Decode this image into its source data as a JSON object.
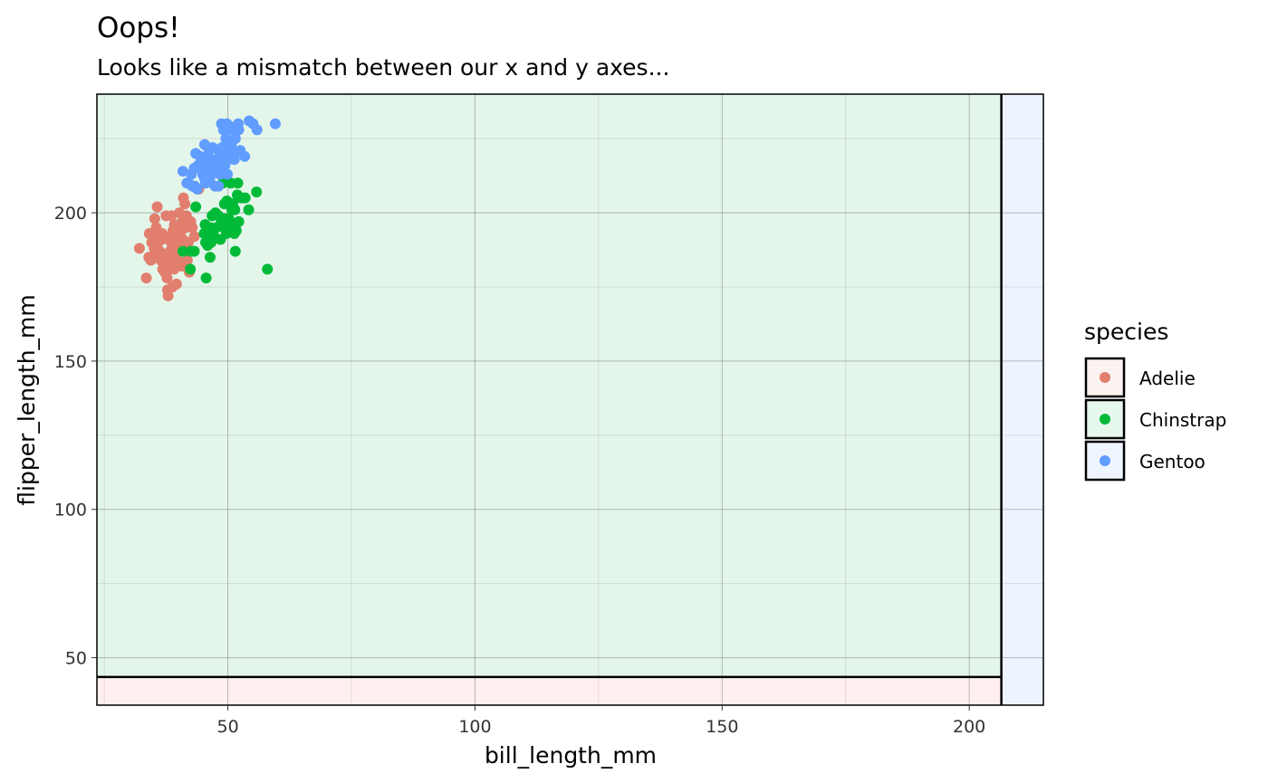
{
  "chart_data": {
    "type": "scatter",
    "title": "Oops!",
    "subtitle": "Looks like a mismatch between our x and y axes...",
    "xlabel": "bill_length_mm",
    "ylabel": "flipper_length_mm",
    "xlim": [
      23.5,
      215
    ],
    "ylim": [
      34,
      240
    ],
    "x_ticks": [
      50,
      100,
      150,
      200
    ],
    "y_ticks": [
      50,
      100,
      150,
      200
    ],
    "x_tick_labels": [
      "50",
      "100",
      "150",
      "200"
    ],
    "y_tick_labels": [
      "50",
      "100",
      "150",
      "200"
    ],
    "grid": true,
    "legend": {
      "title": "species",
      "position": "right"
    },
    "shaded_bands": [
      {
        "axis": "x",
        "from": 206.5,
        "to": 215,
        "color": "#EEF4FF"
      },
      {
        "axis": "y",
        "from": 34,
        "to": 43.5,
        "color": "#FFF0EF"
      }
    ],
    "panel_fill": "#E4F6EA",
    "series": [
      {
        "name": "Adelie",
        "color": "#E27E6E",
        "points": [
          [
            32.1,
            188
          ],
          [
            33.5,
            178
          ],
          [
            34.0,
            185
          ],
          [
            34.1,
            193
          ],
          [
            34.4,
            184
          ],
          [
            34.6,
            190
          ],
          [
            35.0,
            192
          ],
          [
            35.1,
            188
          ],
          [
            35.2,
            198
          ],
          [
            35.5,
            195
          ],
          [
            35.7,
            202
          ],
          [
            35.9,
            190
          ],
          [
            36.0,
            186
          ],
          [
            36.2,
            187
          ],
          [
            36.4,
            184
          ],
          [
            36.6,
            191
          ],
          [
            36.7,
            193
          ],
          [
            36.8,
            181
          ],
          [
            37.0,
            185
          ],
          [
            37.2,
            180
          ],
          [
            37.3,
            192
          ],
          [
            37.5,
            199
          ],
          [
            37.6,
            186
          ],
          [
            37.7,
            178
          ],
          [
            37.8,
            174
          ],
          [
            37.9,
            172
          ],
          [
            38.0,
            183
          ],
          [
            38.1,
            181
          ],
          [
            38.2,
            185
          ],
          [
            38.3,
            187
          ],
          [
            38.5,
            190
          ],
          [
            38.6,
            199
          ],
          [
            38.7,
            182
          ],
          [
            38.8,
            175
          ],
          [
            38.9,
            194
          ],
          [
            39.0,
            185
          ],
          [
            39.1,
            181
          ],
          [
            39.2,
            196
          ],
          [
            39.3,
            189
          ],
          [
            39.5,
            192
          ],
          [
            39.6,
            176
          ],
          [
            39.7,
            193
          ],
          [
            39.8,
            184
          ],
          [
            40.0,
            190
          ],
          [
            40.2,
            200
          ],
          [
            40.3,
            195
          ],
          [
            40.5,
            187
          ],
          [
            40.6,
            194
          ],
          [
            40.7,
            182
          ],
          [
            40.8,
            197
          ],
          [
            40.9,
            191
          ],
          [
            41.0,
            205
          ],
          [
            41.1,
            189
          ],
          [
            41.3,
            203
          ],
          [
            41.4,
            195
          ],
          [
            41.6,
            199
          ],
          [
            41.8,
            184
          ],
          [
            42.0,
            190
          ],
          [
            42.2,
            180
          ],
          [
            42.5,
            197
          ],
          [
            42.8,
            195
          ],
          [
            43.2,
            192
          ],
          [
            44.1,
            208
          ],
          [
            45.8,
            190
          ]
        ]
      },
      {
        "name": "Chinstrap",
        "color": "#00BA38",
        "points": [
          [
            40.9,
            187
          ],
          [
            42.4,
            181
          ],
          [
            42.5,
            187
          ],
          [
            43.2,
            187
          ],
          [
            43.5,
            202
          ],
          [
            45.2,
            193
          ],
          [
            45.4,
            196
          ],
          [
            45.5,
            190
          ],
          [
            45.6,
            178
          ],
          [
            45.7,
            194
          ],
          [
            45.9,
            189
          ],
          [
            46.1,
            193
          ],
          [
            46.4,
            185
          ],
          [
            46.5,
            195
          ],
          [
            46.6,
            190
          ],
          [
            46.8,
            199
          ],
          [
            46.9,
            192
          ],
          [
            47.0,
            193
          ],
          [
            47.5,
            200
          ],
          [
            47.6,
            195
          ],
          [
            48.1,
            199
          ],
          [
            48.5,
            191
          ],
          [
            48.7,
            197
          ],
          [
            49.0,
            210
          ],
          [
            49.2,
            195
          ],
          [
            49.3,
            203
          ],
          [
            49.5,
            198
          ],
          [
            49.7,
            193
          ],
          [
            49.8,
            204
          ],
          [
            50.0,
            196
          ],
          [
            50.2,
            198
          ],
          [
            50.3,
            197
          ],
          [
            50.5,
            196
          ],
          [
            50.6,
            210
          ],
          [
            50.8,
            201
          ],
          [
            50.9,
            196
          ],
          [
            51.0,
            203
          ],
          [
            51.3,
            193
          ],
          [
            51.4,
            201
          ],
          [
            51.5,
            187
          ],
          [
            51.7,
            194
          ],
          [
            51.9,
            206
          ],
          [
            52.0,
            210
          ],
          [
            52.2,
            197
          ],
          [
            52.7,
            205
          ],
          [
            52.8,
            205
          ],
          [
            53.5,
            205
          ],
          [
            54.2,
            201
          ],
          [
            55.8,
            207
          ],
          [
            58.0,
            181
          ]
        ]
      },
      {
        "name": "Gentoo",
        "color": "#619CFF",
        "points": [
          [
            40.9,
            214
          ],
          [
            41.7,
            210
          ],
          [
            42.0,
            210
          ],
          [
            42.6,
            213
          ],
          [
            42.8,
            209
          ],
          [
            43.2,
            215
          ],
          [
            43.3,
            209
          ],
          [
            43.5,
            220
          ],
          [
            43.8,
            208
          ],
          [
            44.0,
            216
          ],
          [
            44.4,
            219
          ],
          [
            44.5,
            217
          ],
          [
            44.9,
            213
          ],
          [
            45.1,
            215
          ],
          [
            45.2,
            212
          ],
          [
            45.3,
            223
          ],
          [
            45.4,
            211
          ],
          [
            45.5,
            210
          ],
          [
            45.7,
            214
          ],
          [
            45.8,
            219
          ],
          [
            46.1,
            215
          ],
          [
            46.2,
            221
          ],
          [
            46.4,
            212
          ],
          [
            46.5,
            216
          ],
          [
            46.8,
            215
          ],
          [
            46.9,
            222
          ],
          [
            47.2,
            214
          ],
          [
            47.4,
            209
          ],
          [
            47.5,
            218
          ],
          [
            47.7,
            216
          ],
          [
            47.8,
            215
          ],
          [
            48.1,
            209
          ],
          [
            48.2,
            221
          ],
          [
            48.4,
            213
          ],
          [
            48.5,
            220
          ],
          [
            48.7,
            230
          ],
          [
            48.8,
            222
          ],
          [
            49.0,
            217
          ],
          [
            49.1,
            228
          ],
          [
            49.2,
            221
          ],
          [
            49.4,
            216
          ],
          [
            49.5,
            229
          ],
          [
            49.6,
            225
          ],
          [
            49.8,
            230
          ],
          [
            49.9,
            213
          ],
          [
            50.0,
            220
          ],
          [
            50.1,
            224
          ],
          [
            50.2,
            218
          ],
          [
            50.4,
            222
          ],
          [
            50.5,
            229
          ],
          [
            50.7,
            223
          ],
          [
            50.8,
            228
          ],
          [
            51.1,
            220
          ],
          [
            51.3,
            218
          ],
          [
            51.5,
            225
          ],
          [
            52.1,
            230
          ],
          [
            52.2,
            228
          ],
          [
            52.5,
            221
          ],
          [
            53.4,
            219
          ],
          [
            54.3,
            231
          ],
          [
            55.1,
            230
          ],
          [
            55.9,
            228
          ],
          [
            59.6,
            230
          ]
        ]
      }
    ]
  }
}
